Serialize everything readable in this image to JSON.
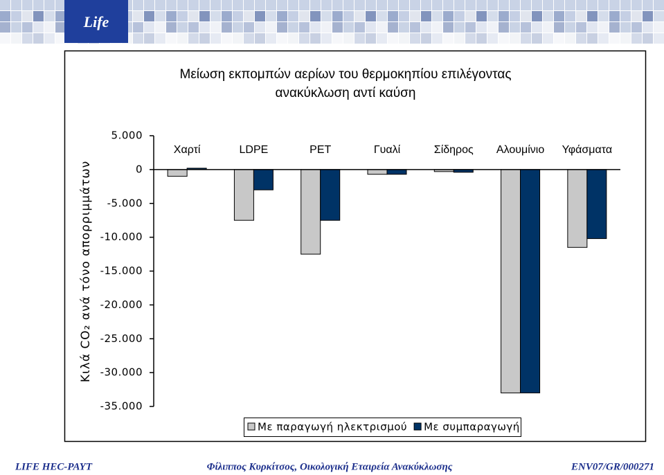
{
  "header": {
    "logo": "Life"
  },
  "chart_data": {
    "type": "bar",
    "title": [
      "Μείωση εκπομπών αερίων του θερμοκηπίου επιλέγοντας",
      "ανακύκλωση αντί καύση"
    ],
    "y_label": "Κιλά CO₂ ανά τόνο απορριμμάτων",
    "categories": [
      "Χαρτί",
      "LDPE",
      "PET",
      "Γυαλί",
      "Σίδηρος",
      "Αλουμίνιο",
      "Υφάσματα"
    ],
    "series": [
      {
        "name": "Με παραγωγή ηλεκτρισμού",
        "color": "#c8c8c8",
        "values": [
          -1000,
          -7500,
          -12500,
          -700,
          -300,
          -33000,
          -11500
        ]
      },
      {
        "name": "Με συμπαραγωγή",
        "color": "#003366",
        "values": [
          200,
          -3000,
          -7500,
          -700,
          -400,
          -33000,
          -10200
        ]
      }
    ],
    "ylim": [
      -35000,
      5000
    ],
    "yticks": [
      {
        "value": 5000,
        "label": "5.000"
      },
      0,
      {
        "value": -5000,
        "label": "-5.000"
      },
      {
        "value": -10000,
        "label": "-10.000"
      },
      {
        "value": -15000,
        "label": "-15.000"
      },
      {
        "value": -20000,
        "label": "-20.000"
      },
      {
        "value": -25000,
        "label": "-25.000"
      },
      {
        "value": -30000,
        "label": "-30.000"
      },
      {
        "value": -35000,
        "label": "-35.000"
      }
    ],
    "grid": false,
    "legend": "bottom"
  },
  "footer": {
    "left": "LIFE HEC-PAYT",
    "center": "Φίλιππος Κυρκίτσος, Οικολογική Εταιρεία Ανακύκλωσης",
    "right": "ENV07/GR/000271"
  }
}
